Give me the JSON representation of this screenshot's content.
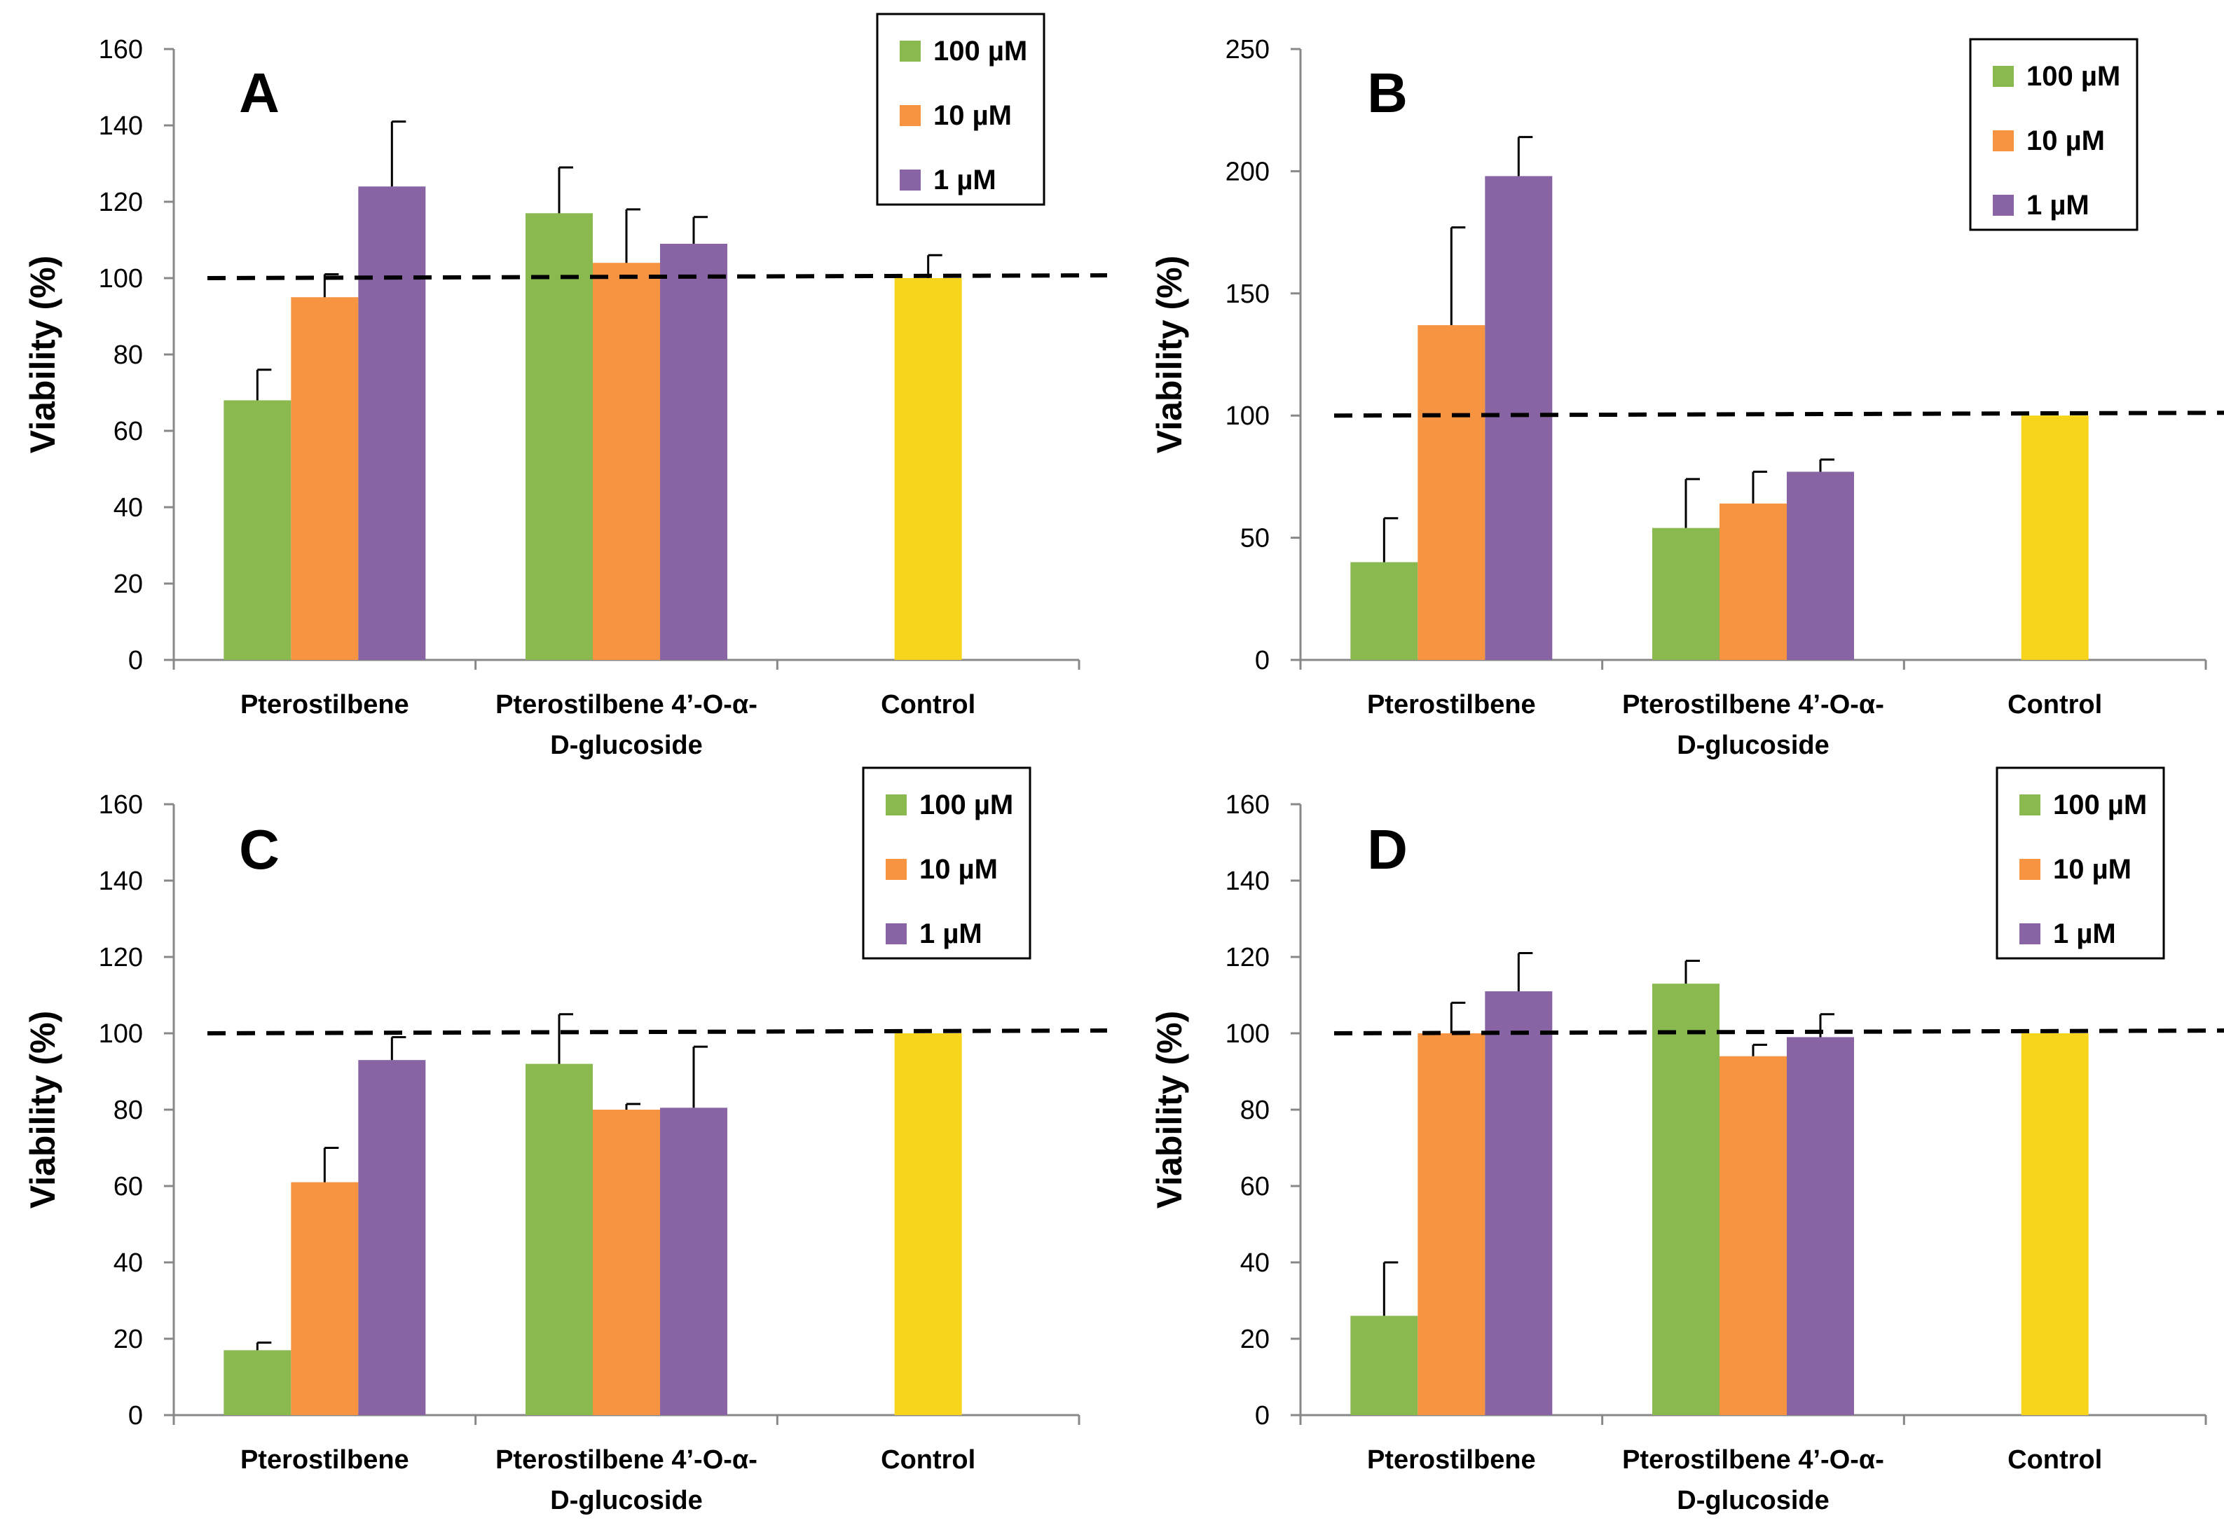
{
  "chart_data": [
    {
      "type": "bar",
      "panel": "A",
      "ylabel": "Viability (%)",
      "ylim": [
        0,
        160
      ],
      "yticks": [
        0,
        20,
        40,
        60,
        80,
        100,
        120,
        140,
        160
      ],
      "reference_line": 100,
      "categories": [
        "Pterostilbene",
        "Pterostilbene 4’-O-α-\nD-glucoside",
        "Control"
      ],
      "series": [
        {
          "name": "100 µM",
          "color": "#8ab94f",
          "values": [
            68,
            117,
            null
          ],
          "errors": [
            8,
            12,
            null
          ]
        },
        {
          "name": "10 µM",
          "color": "#f79441",
          "values": [
            95,
            104,
            null
          ],
          "errors": [
            6,
            14,
            null
          ]
        },
        {
          "name": "1 µM",
          "color": "#8864a4",
          "values": [
            124,
            109,
            null
          ],
          "errors": [
            17,
            7,
            null
          ]
        },
        {
          "name": "Control",
          "color": "#f7d51c",
          "legend": false,
          "values": [
            null,
            null,
            100
          ],
          "errors": [
            null,
            null,
            6
          ]
        }
      ]
    },
    {
      "type": "bar",
      "panel": "B",
      "ylabel": "Viability (%)",
      "ylim": [
        0,
        250
      ],
      "yticks": [
        0,
        50,
        100,
        150,
        200,
        250
      ],
      "reference_line": 100,
      "categories": [
        "Pterostilbene",
        "Pterostilbene 4’-O-α-\nD-glucoside",
        "Control"
      ],
      "series": [
        {
          "name": "100 µM",
          "color": "#8ab94f",
          "values": [
            40,
            54,
            null
          ],
          "errors": [
            18,
            20,
            null
          ]
        },
        {
          "name": "10 µM",
          "color": "#f79441",
          "values": [
            137,
            64,
            null
          ],
          "errors": [
            40,
            13,
            null
          ]
        },
        {
          "name": "1 µM",
          "color": "#8864a4",
          "values": [
            198,
            77,
            null
          ],
          "errors": [
            16,
            5,
            null
          ]
        },
        {
          "name": "Control",
          "color": "#f7d51c",
          "legend": false,
          "values": [
            null,
            null,
            100
          ],
          "errors": [
            null,
            null,
            0
          ]
        }
      ]
    },
    {
      "type": "bar",
      "panel": "C",
      "ylabel": "Viability (%)",
      "ylim": [
        0,
        160
      ],
      "yticks": [
        0,
        20,
        40,
        60,
        80,
        100,
        120,
        140,
        160
      ],
      "reference_line": 100,
      "categories": [
        "Pterostilbene",
        "Pterostilbene 4’-O-α-\nD-glucoside",
        "Control"
      ],
      "series": [
        {
          "name": "100 µM",
          "color": "#8ab94f",
          "values": [
            17,
            92,
            null
          ],
          "errors": [
            2,
            13,
            null
          ]
        },
        {
          "name": "10 µM",
          "color": "#f79441",
          "values": [
            61,
            80,
            null
          ],
          "errors": [
            9,
            1.5,
            null
          ]
        },
        {
          "name": "1 µM",
          "color": "#8864a4",
          "values": [
            93,
            80.5,
            null
          ],
          "errors": [
            6,
            16,
            null
          ]
        },
        {
          "name": "Control",
          "color": "#f7d51c",
          "legend": false,
          "values": [
            null,
            null,
            100
          ],
          "errors": [
            null,
            null,
            0
          ]
        }
      ]
    },
    {
      "type": "bar",
      "panel": "D",
      "ylabel": "Viability (%)",
      "ylim": [
        0,
        160
      ],
      "yticks": [
        0,
        20,
        40,
        60,
        80,
        100,
        120,
        140,
        160
      ],
      "reference_line": 100,
      "categories": [
        "Pterostilbene",
        "Pterostilbene 4’-O-α-\nD-glucoside",
        "Control"
      ],
      "series": [
        {
          "name": "100 µM",
          "color": "#8ab94f",
          "values": [
            26,
            113,
            null
          ],
          "errors": [
            14,
            6,
            null
          ]
        },
        {
          "name": "10 µM",
          "color": "#f79441",
          "values": [
            100,
            94,
            null
          ],
          "errors": [
            8,
            3,
            null
          ]
        },
        {
          "name": "1 µM",
          "color": "#8864a4",
          "values": [
            111,
            99,
            null
          ],
          "errors": [
            10,
            6,
            null
          ]
        },
        {
          "name": "Control",
          "color": "#f7d51c",
          "legend": false,
          "values": [
            null,
            null,
            100
          ],
          "errors": [
            null,
            null,
            0
          ]
        }
      ]
    }
  ]
}
